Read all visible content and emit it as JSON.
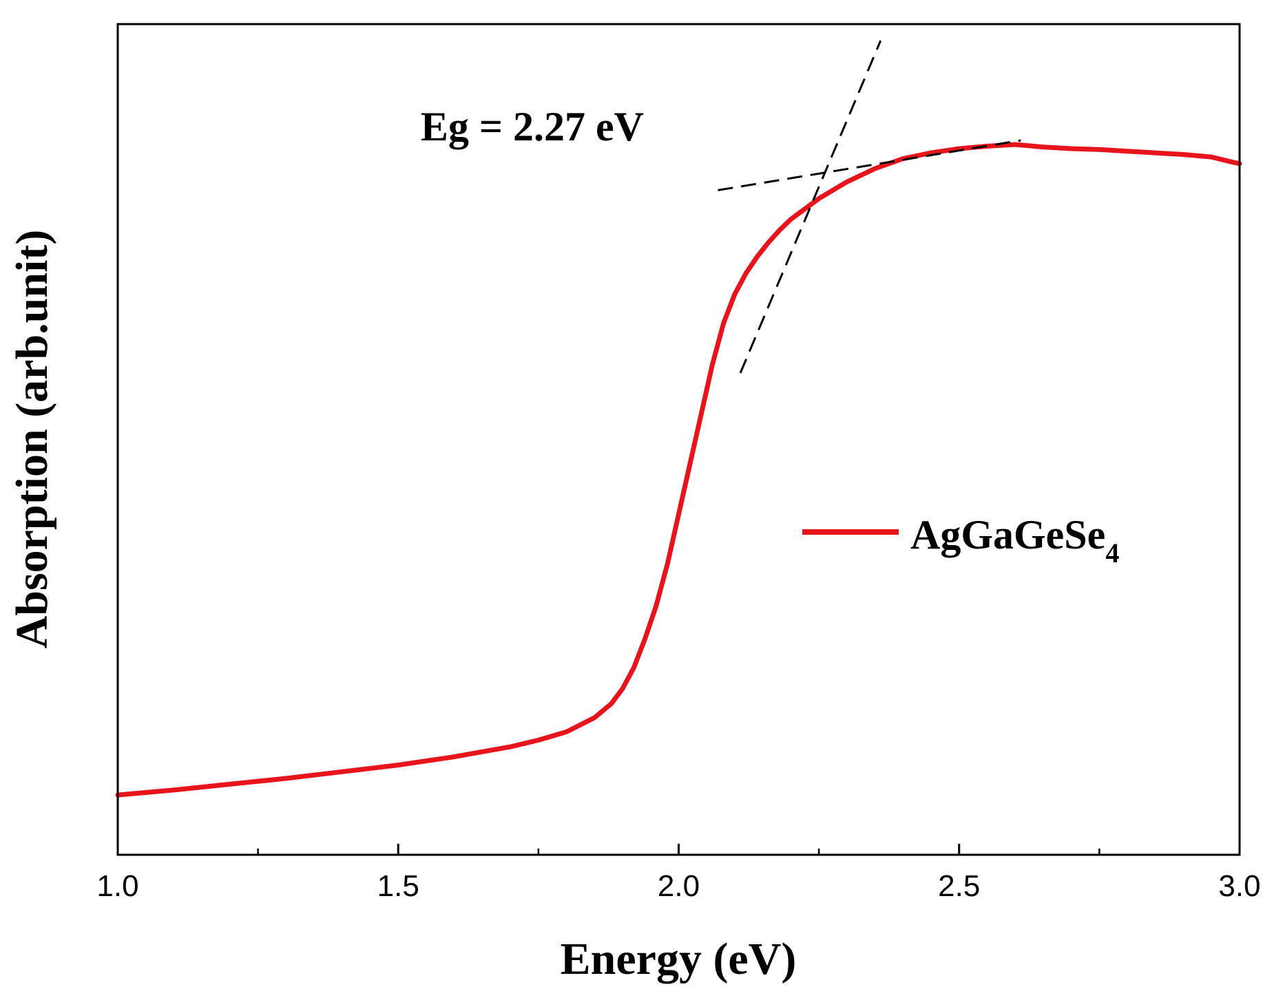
{
  "chart_data": {
    "type": "line",
    "title": "",
    "xlabel": "Energy (eV)",
    "ylabel": "Absorption (arb.unit)",
    "xlim": [
      1.0,
      3.0
    ],
    "ylim": [
      0,
      1
    ],
    "xticks": [
      {
        "value": 1.0,
        "label": "1.0"
      },
      {
        "value": 1.5,
        "label": "1.5"
      },
      {
        "value": 2.0,
        "label": "2.0"
      },
      {
        "value": 2.5,
        "label": "2.5"
      },
      {
        "value": 3.0,
        "label": "3.0"
      }
    ],
    "minor_xticks": [
      1.25,
      1.75,
      2.25,
      2.75
    ],
    "yticks_shown": false,
    "grid": false,
    "series": [
      {
        "name": "AgGaGeSe",
        "name_subscript": "4",
        "color": "#e8141b",
        "x": [
          1.0,
          1.1,
          1.2,
          1.3,
          1.4,
          1.5,
          1.6,
          1.7,
          1.75,
          1.8,
          1.85,
          1.88,
          1.9,
          1.92,
          1.94,
          1.96,
          1.98,
          2.0,
          2.02,
          2.04,
          2.06,
          2.08,
          2.1,
          2.12,
          2.14,
          2.16,
          2.18,
          2.2,
          2.25,
          2.3,
          2.35,
          2.4,
          2.45,
          2.5,
          2.55,
          2.6,
          2.65,
          2.7,
          2.75,
          2.8,
          2.85,
          2.9,
          2.95,
          2.98,
          3.0
        ],
        "y": [
          0.072,
          0.078,
          0.085,
          0.092,
          0.1,
          0.108,
          0.118,
          0.13,
          0.138,
          0.148,
          0.165,
          0.182,
          0.2,
          0.225,
          0.26,
          0.3,
          0.35,
          0.41,
          0.47,
          0.53,
          0.59,
          0.64,
          0.675,
          0.7,
          0.72,
          0.737,
          0.752,
          0.765,
          0.79,
          0.81,
          0.826,
          0.838,
          0.845,
          0.85,
          0.853,
          0.855,
          0.852,
          0.85,
          0.849,
          0.847,
          0.845,
          0.843,
          0.84,
          0.835,
          0.832
        ]
      }
    ],
    "annotations": [
      {
        "text": "Eg = 2.27 eV",
        "x": 1.54,
        "y": 0.86
      }
    ],
    "tangent_lines": [
      {
        "x1": 2.11,
        "y1": 0.58,
        "x2": 2.36,
        "y2": 0.98
      },
      {
        "x1": 2.07,
        "y1": 0.8,
        "x2": 2.61,
        "y2": 0.86
      }
    ],
    "band_gap_eV": 2.27,
    "legend_position": "center-right"
  }
}
